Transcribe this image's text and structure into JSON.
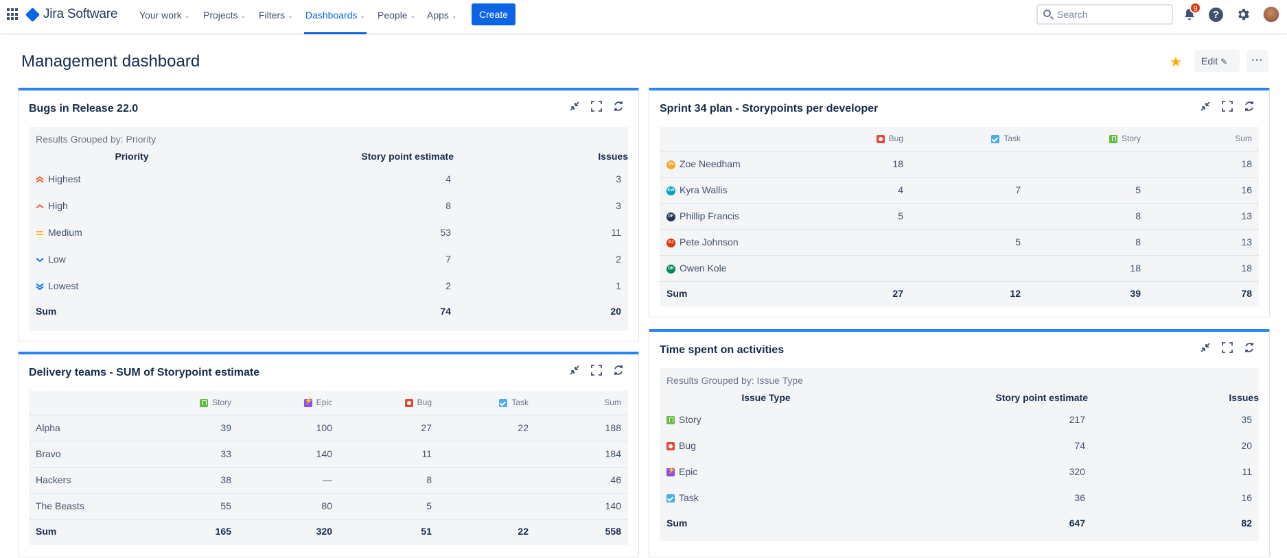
{
  "nav": {
    "logo_text": "Jira Software",
    "items": [
      {
        "label": "Your work"
      },
      {
        "label": "Projects"
      },
      {
        "label": "Filters"
      },
      {
        "label": "Dashboards"
      },
      {
        "label": "People"
      },
      {
        "label": "Apps"
      }
    ],
    "create_label": "Create",
    "search_placeholder": "Search",
    "notification_count": "9",
    "help_glyph": "?"
  },
  "page": {
    "title": "Management dashboard",
    "edit_label": "Edit",
    "more_label": "···"
  },
  "bugs_gadget": {
    "title": "Bugs in Release 22.0",
    "grouped_by": "Results Grouped by: Priority",
    "columns": [
      "Priority",
      "Story point estimate",
      "Issues"
    ],
    "rows": [
      {
        "label": "Highest",
        "icon": "priority-highest-icon",
        "sp": "4",
        "issues": "3"
      },
      {
        "label": "High",
        "icon": "priority-high-icon",
        "sp": "8",
        "issues": "3"
      },
      {
        "label": "Medium",
        "icon": "priority-medium-icon",
        "sp": "53",
        "issues": "11"
      },
      {
        "label": "Low",
        "icon": "priority-low-icon",
        "sp": "7",
        "issues": "2"
      },
      {
        "label": "Lowest",
        "icon": "priority-lowest-icon",
        "sp": "2",
        "issues": "1"
      }
    ],
    "sum": {
      "label": "Sum",
      "sp": "74",
      "issues": "20"
    }
  },
  "sprint_gadget": {
    "title": "Sprint 34 plan - Storypoints per developer",
    "columns": [
      "Bug",
      "Task",
      "Story",
      "Sum"
    ],
    "rows": [
      {
        "name": "Zoe Needham",
        "initials": "ZN",
        "color": "#f5a623",
        "bug": "18",
        "task": "",
        "story": "",
        "sum": "18"
      },
      {
        "name": "Kyra Wallis",
        "initials": "KW",
        "color": "#00a3bf",
        "bug": "4",
        "task": "7",
        "story": "5",
        "sum": "16"
      },
      {
        "name": "Phillip Francis",
        "initials": "PF",
        "color": "#253858",
        "bug": "5",
        "task": "",
        "story": "8",
        "sum": "13"
      },
      {
        "name": "Pete Johnson",
        "initials": "PJ",
        "color": "#de350b",
        "bug": "",
        "task": "5",
        "story": "8",
        "sum": "13"
      },
      {
        "name": "Owen Kole",
        "initials": "OK",
        "color": "#00875a",
        "bug": "",
        "task": "",
        "story": "18",
        "sum": "18"
      }
    ],
    "sum": {
      "label": "Sum",
      "bug": "27",
      "task": "12",
      "story": "39",
      "sum": "78"
    }
  },
  "delivery_gadget": {
    "title": "Delivery teams - SUM of Storypoint estimate",
    "columns": [
      "Story",
      "Epic",
      "Bug",
      "Task",
      "Sum"
    ],
    "rows": [
      {
        "team": "Alpha",
        "story": "39",
        "epic": "100",
        "bug": "27",
        "task": "22",
        "sum": "188"
      },
      {
        "team": "Bravo",
        "story": "33",
        "epic": "140",
        "bug": "11",
        "task": "",
        "sum": "184"
      },
      {
        "team": "Hackers",
        "story": "38",
        "epic": "—",
        "bug": "8",
        "task": "",
        "sum": "46"
      },
      {
        "team": "The Beasts",
        "story": "55",
        "epic": "80",
        "bug": "5",
        "task": "",
        "sum": "140"
      }
    ],
    "sum": {
      "label": "Sum",
      "story": "165",
      "epic": "320",
      "bug": "51",
      "task": "22",
      "sum": "558"
    }
  },
  "time_gadget": {
    "title": "Time spent on activities",
    "grouped_by": "Results Grouped by: Issue Type",
    "columns": [
      "Issue Type",
      "Story point estimate",
      "Issues"
    ],
    "rows": [
      {
        "label": "Story",
        "type": "story",
        "sp": "217",
        "issues": "35"
      },
      {
        "label": "Bug",
        "type": "bug",
        "sp": "74",
        "issues": "20"
      },
      {
        "label": "Epic",
        "type": "epic",
        "sp": "320",
        "issues": "11"
      },
      {
        "label": "Task",
        "type": "task",
        "sp": "36",
        "issues": "16"
      }
    ],
    "sum": {
      "label": "Sum",
      "sp": "647",
      "issues": "82"
    }
  },
  "colors": {
    "accent": "#0c66e4",
    "gadget_border": "#2684ff",
    "star": "#ffab00"
  }
}
